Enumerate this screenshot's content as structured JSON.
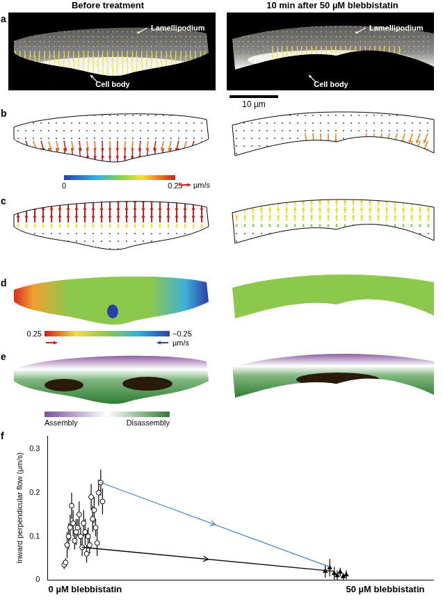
{
  "figure": {
    "columns": [
      "Before treatment",
      "10 min after 50 µM blebbistatin"
    ],
    "panels": [
      "a",
      "b",
      "c",
      "d",
      "e",
      "f"
    ],
    "labels": {
      "lamellipodium": "Lamellipodium",
      "cell_body": "Cell body"
    },
    "scale_bar": "10 µm",
    "speed_colorbar": {
      "range": [
        0,
        0.25
      ],
      "ticks": [
        0,
        0.25
      ],
      "unit": "µm/s"
    },
    "flow_colorbar": {
      "range": [
        0.25,
        -0.25
      ],
      "ticks": [
        0.25,
        {
          "value": -0.25,
          "label": "−0.25"
        }
      ],
      "unit": "µm/s"
    },
    "turnover_colorbar": {
      "labels": [
        "Assembly",
        "Disassembly"
      ]
    }
  },
  "chart_data": {
    "type": "scatter",
    "y_label": "Inward perpendicular flow (µm/s)",
    "xlim": [
      -0.125,
      1.16
    ],
    "xticks": [
      {
        "value": 0,
        "label": "0 µM blebbistatin"
      },
      {
        "value": 1,
        "label": "50 µM blebbistatin"
      }
    ],
    "ylim": [
      0,
      0.33
    ],
    "yticks": [
      0,
      0.1,
      0.2,
      0.3
    ],
    "grid": false,
    "series": [
      {
        "type": "line",
        "color": "#4a7fc1",
        "marker": "none",
        "line_style": "solid",
        "x": [
          0.052,
          0.815
        ],
        "values": [
          0.223,
          0.03
        ]
      },
      {
        "type": "line",
        "color": "#000000",
        "marker": "none",
        "line_style": "solid",
        "x": [
          -0.01,
          0.83
        ],
        "values": [
          0.075,
          0.02
        ]
      },
      {
        "type": "scatter",
        "color": "#000000",
        "marker": "circle",
        "x": [
          -0.07,
          -0.065,
          -0.06,
          -0.055,
          -0.05,
          -0.045,
          -0.04,
          -0.035,
          -0.03,
          -0.025,
          -0.02,
          -0.015,
          -0.01,
          -0.005,
          0,
          0.005,
          0.01,
          0.015,
          0.02,
          0.025,
          0.03,
          0.035,
          0.04,
          0.045,
          0.052,
          0.058
        ],
        "values": [
          0.035,
          0.04,
          0.08,
          0.1,
          0.12,
          0.17,
          0.13,
          0.09,
          0.11,
          0.12,
          0.15,
          0.1,
          0.075,
          0.13,
          0.11,
          0.06,
          0.1,
          0.08,
          0.19,
          0.14,
          0.16,
          0.12,
          0.085,
          0.2,
          0.223,
          0.18
        ],
        "errors": [
          0.01,
          0.01,
          0.03,
          0.03,
          0.03,
          0.03,
          0.03,
          0.02,
          0.03,
          0.02,
          0.03,
          0.02,
          0.02,
          0.03,
          0.03,
          0.02,
          0.02,
          0.02,
          0.03,
          0.03,
          0.03,
          0.02,
          0.03,
          0.03,
          0.03,
          0.03
        ]
      },
      {
        "type": "scatter",
        "color": "#000000",
        "marker": "triangle",
        "x": [
          0.8,
          0.815,
          0.83,
          0.84,
          0.85,
          0.86,
          0.87
        ],
        "values": [
          0.02,
          0.028,
          0.015,
          0.01,
          0.018,
          0.008,
          0.012
        ],
        "errors": [
          0.015,
          0.02,
          0.015,
          0.012,
          0.01,
          0.008,
          0.01
        ]
      }
    ]
  }
}
